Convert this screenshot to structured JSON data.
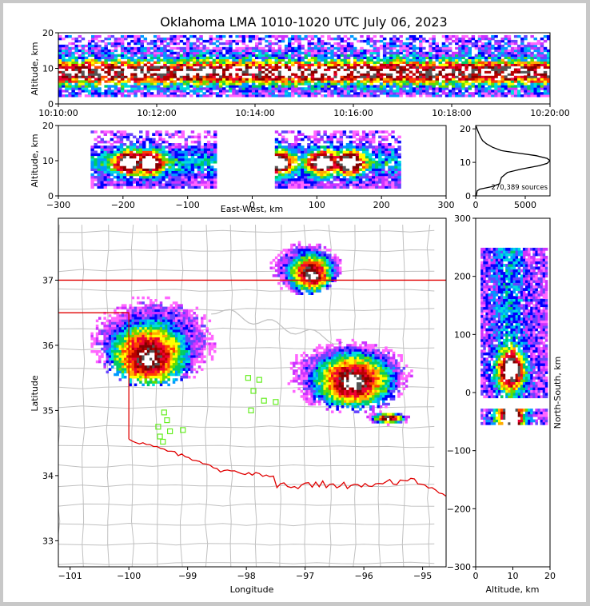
{
  "title": "Oklahoma LMA 1010-1020 UTC July 06, 2023",
  "colors": {
    "state_border": "#e00000",
    "county_lines": "#c0c0c0",
    "stations": "#66ee22",
    "background": "#ffffff"
  },
  "chart_data": [
    {
      "panel": "time-height",
      "type": "heatmap",
      "ylabel": "Altitude, km",
      "ylim": [
        0,
        20
      ],
      "yticks": [
        "0",
        "10",
        "20"
      ],
      "xlim": [
        "10:10:00",
        "10:20:00"
      ],
      "xticks": [
        "10:10:00",
        "10:12:00",
        "10:14:00",
        "10:16:00",
        "10:18:00",
        "10:20:00"
      ],
      "density": "continuous, 2-19 km, peak near 8-10 km"
    },
    {
      "panel": "east-west-height",
      "type": "heatmap",
      "xlabel": "East-West, km",
      "ylabel": "Altitude, km",
      "xlim": [
        -300,
        300
      ],
      "ylim": [
        0,
        20
      ],
      "xticks": [
        "−300",
        "−200",
        "−100",
        "0",
        "100",
        "200",
        "300"
      ],
      "yticks": [
        "0",
        "10",
        "20"
      ],
      "clusters": [
        {
          "x_range": [
            -250,
            -55
          ],
          "peaks_x": [
            -190,
            -160
          ]
        },
        {
          "x_range": [
            35,
            230
          ],
          "peaks_x": [
            40,
            110,
            150
          ]
        }
      ]
    },
    {
      "panel": "altitude-histogram",
      "type": "line",
      "xlim": [
        0,
        7500
      ],
      "ylim": [
        0,
        21
      ],
      "xticks": [
        "0",
        "5000"
      ],
      "yticks": [
        "0",
        "10",
        "20"
      ],
      "annotation": "270,389 sources",
      "x": [
        60,
        150,
        400,
        900,
        1700,
        2400,
        2500,
        2600,
        3200,
        4600,
        6400,
        7200,
        7500,
        7200,
        6100,
        4200,
        2600,
        1700,
        1100,
        700,
        500,
        350,
        200,
        80,
        20
      ],
      "y": [
        0,
        1.5,
        2,
        2.3,
        2.8,
        3.6,
        4.5,
        5.5,
        7,
        8,
        9,
        9.7,
        10.5,
        11.2,
        12,
        12.8,
        13.5,
        14.5,
        15.5,
        16.5,
        17.5,
        18.5,
        19.5,
        20.5,
        21
      ]
    },
    {
      "panel": "plan-view",
      "type": "heatmap",
      "xlabel": "Longitude",
      "ylabel": "Latitude",
      "xlim": [
        -101.2,
        -94.6
      ],
      "ylim": [
        32.6,
        37.95
      ],
      "xticks": [
        "−101",
        "−100",
        "−99",
        "−98",
        "−97",
        "−96",
        "−95"
      ],
      "yticks": [
        "33",
        "34",
        "35",
        "36",
        "37"
      ],
      "stations": [
        [
          -97.97,
          35.5
        ],
        [
          -97.78,
          35.47
        ],
        [
          -97.88,
          35.3
        ],
        [
          -97.7,
          35.15
        ],
        [
          -97.92,
          35.0
        ],
        [
          -97.5,
          35.13
        ],
        [
          -99.4,
          34.97
        ],
        [
          -99.35,
          34.85
        ],
        [
          -99.5,
          34.75
        ],
        [
          -99.3,
          34.68
        ],
        [
          -99.47,
          34.6
        ],
        [
          -99.42,
          34.52
        ],
        [
          -99.08,
          34.7
        ]
      ],
      "clusters": [
        {
          "lon": -99.7,
          "lat": 35.8,
          "lon_range": [
            -100.65,
            -98.55
          ],
          "lat_range": [
            35.4,
            36.75
          ]
        },
        {
          "lon": -96.2,
          "lat": 35.45,
          "lon_range": [
            -97.3,
            -95.2
          ],
          "lat_range": [
            35.0,
            36.1
          ]
        },
        {
          "lon": -96.9,
          "lat": 37.1,
          "lon_range": [
            -97.6,
            -96.4
          ],
          "lat_range": [
            36.8,
            37.6
          ]
        },
        {
          "lon": -95.6,
          "lat": 34.9,
          "lon_range": [
            -96.0,
            -95.2
          ],
          "lat_range": [
            34.8,
            35.0
          ]
        }
      ]
    },
    {
      "panel": "north-south-height",
      "type": "heatmap",
      "xlabel": "Altitude, km",
      "ylabel": "North-South, km",
      "xlim": [
        0,
        20
      ],
      "ylim": [
        -300,
        300
      ],
      "xticks": [
        "0",
        "10",
        "20"
      ],
      "yticks": [
        "300",
        "200",
        "100",
        "0",
        "−100",
        "−200",
        "−300"
      ],
      "clusters": [
        {
          "y_range": [
            -10,
            250
          ],
          "peak_y": 40
        },
        {
          "y_range": [
            -55,
            -30
          ],
          "peak_y": -40
        }
      ]
    }
  ]
}
